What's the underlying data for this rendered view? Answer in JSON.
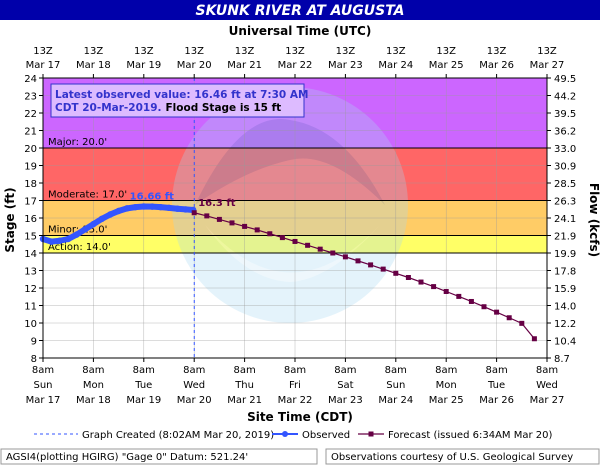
{
  "title": "SKUNK RIVER AT AUGUSTA",
  "top_axis_title": "Universal Time (UTC)",
  "bottom_axis_title": "Site Time (CDT)",
  "left_axis_title": "Stage (ft)",
  "right_axis_title": "Flow (kcfs)",
  "info_box": {
    "line1": "Latest observed value: 16.46 ft at 7:30 AM",
    "line2_blue": "CDT 20-Mar-2019.",
    "line2_black": "Flood Stage is 15 ft"
  },
  "peak_label": "16.66 ft",
  "forecast_label": "16.3 ft",
  "legend": {
    "graph_created": "Graph Created (8:02AM Mar 20, 2019)",
    "observed": "Observed",
    "forecast": "Forecast (issued 6:34AM Mar 20)"
  },
  "footer": {
    "left": "AGSI4(plotting HGIRG) \"Gage 0\" Datum:  521.24'",
    "right": "Observations courtesy of U.S. Geological Survey"
  },
  "colors": {
    "title_bg": "#0000aa",
    "major": "#cc66ff",
    "moderate": "#ff6666",
    "minor": "#ffcc66",
    "action": "#ffff66",
    "observed": "#3355ff",
    "forecast": "#660044",
    "info_text": "#3333cc",
    "info_bg": "#ddbbff"
  },
  "chart_data": {
    "type": "line",
    "title": "SKUNK RIVER AT AUGUSTA",
    "xlabel": "Site Time (CDT)",
    "ylabel": "Stage (ft)",
    "y2label": "Flow (kcfs)",
    "ylim": [
      8,
      24
    ],
    "xlim": [
      0,
      240
    ],
    "grid": true,
    "y_ticks": [
      8,
      9,
      10,
      11,
      12,
      13,
      14,
      15,
      16,
      17,
      18,
      19,
      20,
      21,
      22,
      23,
      24
    ],
    "y2_ticks": [
      "8.7",
      "10.4",
      "12.2",
      "14.0",
      "15.9",
      "17.8",
      "19.9",
      "21.9",
      "24.1",
      "26.3",
      "28.5",
      "30.9",
      "33.0",
      "36.2",
      "39.5",
      "44.2",
      "49.5"
    ],
    "bottom_ticks": [
      {
        "time": "8am",
        "day": "Sun",
        "date": "Mar 17"
      },
      {
        "time": "8am",
        "day": "Mon",
        "date": "Mar 18"
      },
      {
        "time": "8am",
        "day": "Tue",
        "date": "Mar 19"
      },
      {
        "time": "8am",
        "day": "Wed",
        "date": "Mar 20"
      },
      {
        "time": "8am",
        "day": "Thu",
        "date": "Mar 21"
      },
      {
        "time": "8am",
        "day": "Fri",
        "date": "Mar 22"
      },
      {
        "time": "8am",
        "day": "Sat",
        "date": "Mar 23"
      },
      {
        "time": "8am",
        "day": "Sun",
        "date": "Mar 24"
      },
      {
        "time": "8am",
        "day": "Mon",
        "date": "Mar 25"
      },
      {
        "time": "8am",
        "day": "Tue",
        "date": "Mar 26"
      },
      {
        "time": "8am",
        "day": "Wed",
        "date": "Mar 27"
      }
    ],
    "top_ticks": [
      {
        "time": "13Z",
        "date": "Mar 17"
      },
      {
        "time": "13Z",
        "date": "Mar 18"
      },
      {
        "time": "13Z",
        "date": "Mar 19"
      },
      {
        "time": "13Z",
        "date": "Mar 20"
      },
      {
        "time": "13Z",
        "date": "Mar 21"
      },
      {
        "time": "13Z",
        "date": "Mar 22"
      },
      {
        "time": "13Z",
        "date": "Mar 23"
      },
      {
        "time": "13Z",
        "date": "Mar 24"
      },
      {
        "time": "13Z",
        "date": "Mar 25"
      },
      {
        "time": "13Z",
        "date": "Mar 26"
      },
      {
        "time": "13Z",
        "date": "Mar 27"
      }
    ],
    "flood_categories": [
      {
        "name": "Major",
        "label": "Major: 20.0'",
        "stage": 20.0,
        "top": 24
      },
      {
        "name": "Moderate",
        "label": "Moderate: 17.0'",
        "stage": 17.0,
        "top": 20
      },
      {
        "name": "Minor",
        "label": "Minor: 15.0'",
        "stage": 15.0,
        "top": 17
      },
      {
        "name": "Action",
        "label": "Action: 14.0'",
        "stage": 14.0,
        "top": 15
      }
    ],
    "graph_created_hour": 72.03,
    "series": [
      {
        "name": "Observed",
        "x": [
          0,
          4,
          8,
          12,
          16,
          20,
          24,
          28,
          32,
          36,
          40,
          44,
          48,
          52,
          56,
          60,
          64,
          68,
          71.5
        ],
        "values": [
          14.8,
          14.65,
          14.7,
          14.8,
          15.05,
          15.35,
          15.65,
          15.95,
          16.2,
          16.4,
          16.55,
          16.62,
          16.66,
          16.65,
          16.62,
          16.58,
          16.53,
          16.49,
          16.46
        ]
      },
      {
        "name": "Forecast",
        "x": [
          72,
          78,
          84,
          90,
          96,
          102,
          108,
          114,
          120,
          126,
          132,
          138,
          144,
          150,
          156,
          162,
          168,
          174,
          180,
          186,
          192,
          198,
          204,
          210,
          216,
          222,
          228,
          234
        ],
        "values": [
          16.3,
          16.12,
          15.92,
          15.72,
          15.52,
          15.32,
          15.1,
          14.88,
          14.66,
          14.44,
          14.22,
          14.0,
          13.78,
          13.55,
          13.32,
          13.08,
          12.84,
          12.6,
          12.34,
          12.08,
          11.8,
          11.52,
          11.23,
          10.93,
          10.62,
          10.3,
          9.98,
          9.1
        ]
      }
    ]
  }
}
